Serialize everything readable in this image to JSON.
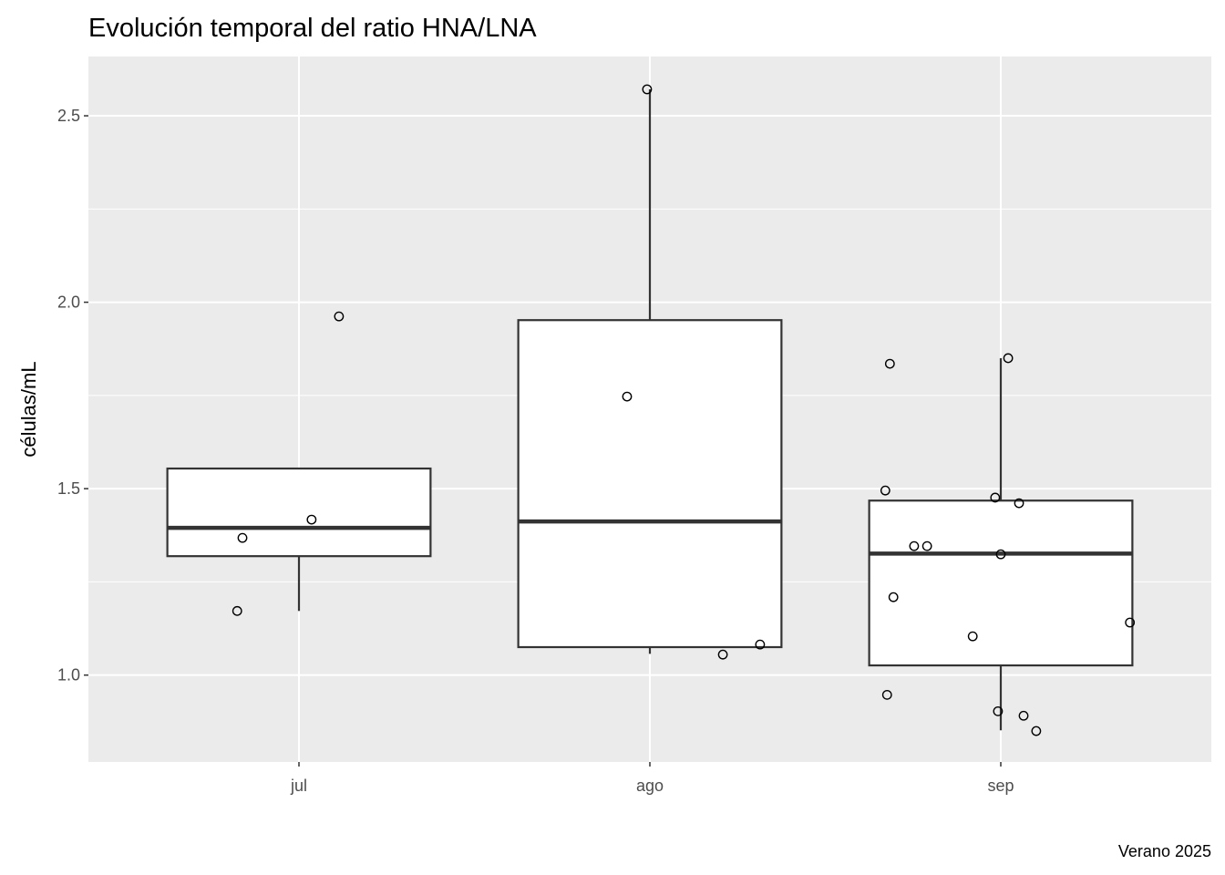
{
  "chart_data": {
    "type": "boxplot",
    "title": "Evolución temporal del ratio HNA/LNA",
    "xlabel": "",
    "ylabel": "células/mL",
    "caption": "Verano 2025",
    "ylim": [
      0.767,
      2.659
    ],
    "yticks": [
      1.0,
      1.5,
      2.0,
      2.5
    ],
    "ytick_labels": [
      "1.0",
      "1.5",
      "2.0",
      "2.5"
    ],
    "yminor": [
      1.25,
      1.75,
      2.25
    ],
    "categories": [
      "jul",
      "ago",
      "sep"
    ],
    "grid": true,
    "boxes": [
      {
        "category": "jul",
        "lower_whisker": 1.172,
        "q1": 1.319,
        "median": 1.395,
        "q3": 1.554,
        "upper_whisker": 1.554
      },
      {
        "category": "ago",
        "lower_whisker": 1.057,
        "q1": 1.075,
        "median": 1.412,
        "q3": 1.952,
        "upper_whisker": 2.571
      },
      {
        "category": "sep",
        "lower_whisker": 0.852,
        "q1": 1.026,
        "median": 1.326,
        "q3": 1.468,
        "upper_whisker": 1.85
      }
    ],
    "points": [
      {
        "category": "jul",
        "jitter": 0.114,
        "y": 1.962
      },
      {
        "category": "jul",
        "jitter": 0.036,
        "y": 1.417
      },
      {
        "category": "jul",
        "jitter": -0.161,
        "y": 1.368
      },
      {
        "category": "jul",
        "jitter": -0.176,
        "y": 1.172
      },
      {
        "category": "ago",
        "jitter": -0.008,
        "y": 2.571
      },
      {
        "category": "ago",
        "jitter": -0.065,
        "y": 1.747
      },
      {
        "category": "ago",
        "jitter": 0.208,
        "y": 1.055
      },
      {
        "category": "ago",
        "jitter": 0.314,
        "y": 1.082
      },
      {
        "category": "sep",
        "jitter": -0.316,
        "y": 1.835
      },
      {
        "category": "sep",
        "jitter": 0.021,
        "y": 1.85
      },
      {
        "category": "sep",
        "jitter": -0.329,
        "y": 1.495
      },
      {
        "category": "sep",
        "jitter": -0.016,
        "y": 1.476
      },
      {
        "category": "sep",
        "jitter": 0.052,
        "y": 1.461
      },
      {
        "category": "sep",
        "jitter": -0.247,
        "y": 1.346
      },
      {
        "category": "sep",
        "jitter": -0.21,
        "y": 1.346
      },
      {
        "category": "sep",
        "jitter": 0.0,
        "y": 1.324
      },
      {
        "category": "sep",
        "jitter": -0.306,
        "y": 1.209
      },
      {
        "category": "sep",
        "jitter": -0.08,
        "y": 1.104
      },
      {
        "category": "sep",
        "jitter": 0.368,
        "y": 1.141
      },
      {
        "category": "sep",
        "jitter": -0.324,
        "y": 0.947
      },
      {
        "category": "sep",
        "jitter": -0.008,
        "y": 0.903
      },
      {
        "category": "sep",
        "jitter": 0.065,
        "y": 0.891
      },
      {
        "category": "sep",
        "jitter": 0.101,
        "y": 0.85
      }
    ],
    "colors": {
      "panel": "#ebebeb",
      "grid": "#ffffff",
      "box_line": "#333333",
      "box_fill": "#ffffff"
    }
  }
}
